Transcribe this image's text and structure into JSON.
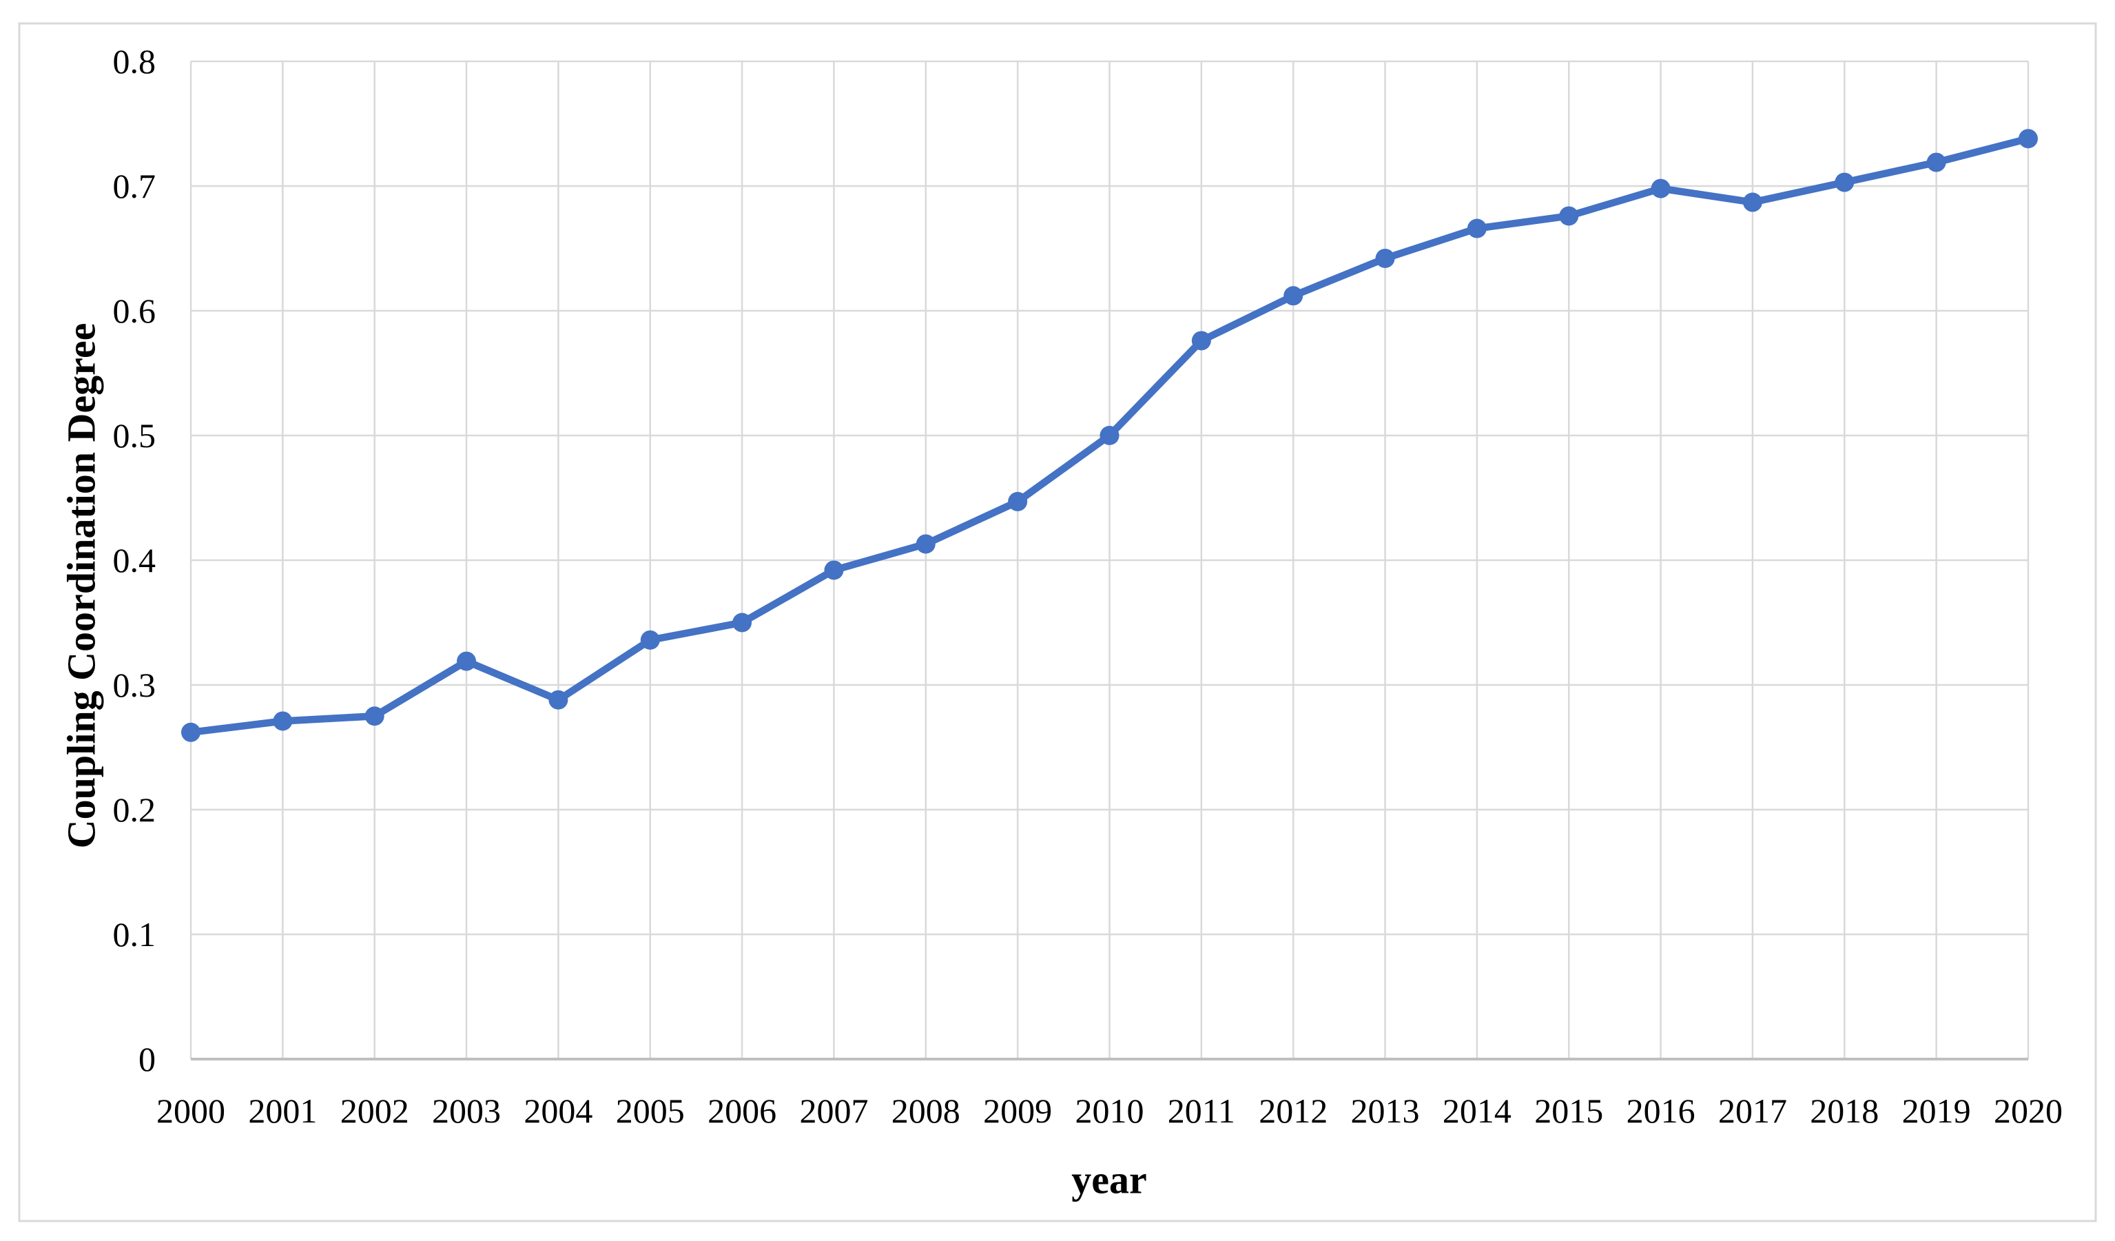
{
  "figure": {
    "background": "#ffffff",
    "border_color": "#d9d9d9"
  },
  "chart_data": {
    "type": "line",
    "title": "",
    "xlabel": "year",
    "ylabel": "Coupling Coordination Degree",
    "categories": [
      "2000",
      "2001",
      "2002",
      "2003",
      "2004",
      "2005",
      "2006",
      "2007",
      "2008",
      "2009",
      "2010",
      "2011",
      "2012",
      "2013",
      "2014",
      "2015",
      "2016",
      "2017",
      "2018",
      "2019",
      "2020"
    ],
    "series": [
      {
        "name": "Coupling Coordination Degree",
        "color": "#4472C4",
        "marker": "circle",
        "values": [
          0.262,
          0.271,
          0.275,
          0.319,
          0.288,
          0.336,
          0.35,
          0.392,
          0.413,
          0.447,
          0.5,
          0.576,
          0.612,
          0.642,
          0.666,
          0.676,
          0.698,
          0.687,
          0.703,
          0.719,
          0.738
        ]
      }
    ],
    "ylim": [
      0,
      0.8
    ],
    "ytick_interval": 0.1,
    "ytick_labels": [
      "0",
      "0.1",
      "0.2",
      "0.3",
      "0.4",
      "0.5",
      "0.6",
      "0.7",
      "0.8"
    ],
    "grid": true,
    "gridline_color": "#d9d9d9",
    "axis_line_color": "#bfbfbf",
    "legend_position": "none"
  }
}
